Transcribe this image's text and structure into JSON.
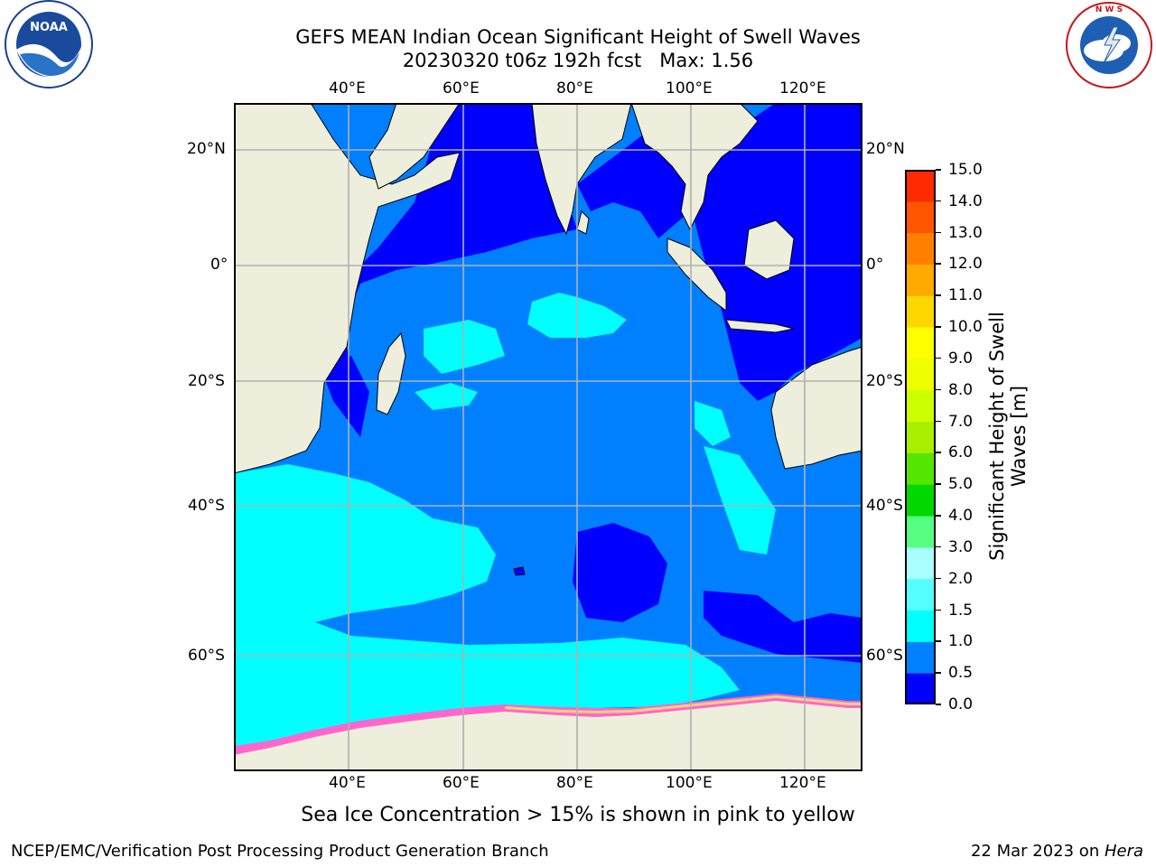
{
  "title": {
    "line1": "GEFS MEAN Indian Ocean Significant Height of Swell Waves",
    "line2": "20230320 t06z 192h fcst   Max: 1.56"
  },
  "axes": {
    "top_lon": [
      "40°E",
      "60°E",
      "80°E",
      "100°E",
      "120°E"
    ],
    "bottom_lon": [
      "40°E",
      "60°E",
      "80°E",
      "100°E",
      "120°E"
    ],
    "left_lat": [
      "20°N",
      "0°",
      "20°S",
      "40°S",
      "60°S"
    ],
    "right_lat": [
      "20°N",
      "0°",
      "20°S",
      "40°S",
      "60°S"
    ]
  },
  "colorbar": {
    "label_line1": "Significant Height of Swell",
    "label_line2": "Waves [m]",
    "ticks": [
      "0.0",
      "0.5",
      "1.0",
      "1.5",
      "2.0",
      "3.0",
      "4.0",
      "5.0",
      "6.0",
      "7.0",
      "8.0",
      "9.0",
      "10.0",
      "11.0",
      "12.0",
      "13.0",
      "14.0",
      "15.0"
    ],
    "colors": [
      "#0000ff",
      "#0080ff",
      "#00ffff",
      "#55ffff",
      "#aaffff",
      "#55ff80",
      "#00d800",
      "#55e600",
      "#aaee00",
      "#ccff00",
      "#eeff00",
      "#ffff00",
      "#ffd700",
      "#ffaa00",
      "#ff8000",
      "#ff5500",
      "#ff2a00",
      "#ff0000"
    ]
  },
  "note": "Sea Ice Concentration > 15% is shown in pink to yellow",
  "footer": {
    "left": "NCEP/EMC/Verification Post Processing Product Generation Branch",
    "right_prefix": "22 Mar 2023 on ",
    "right_host": "Hera"
  },
  "logos": {
    "noaa": "NOAA",
    "nws": "NATIONAL WEATHER SERVICE"
  }
}
